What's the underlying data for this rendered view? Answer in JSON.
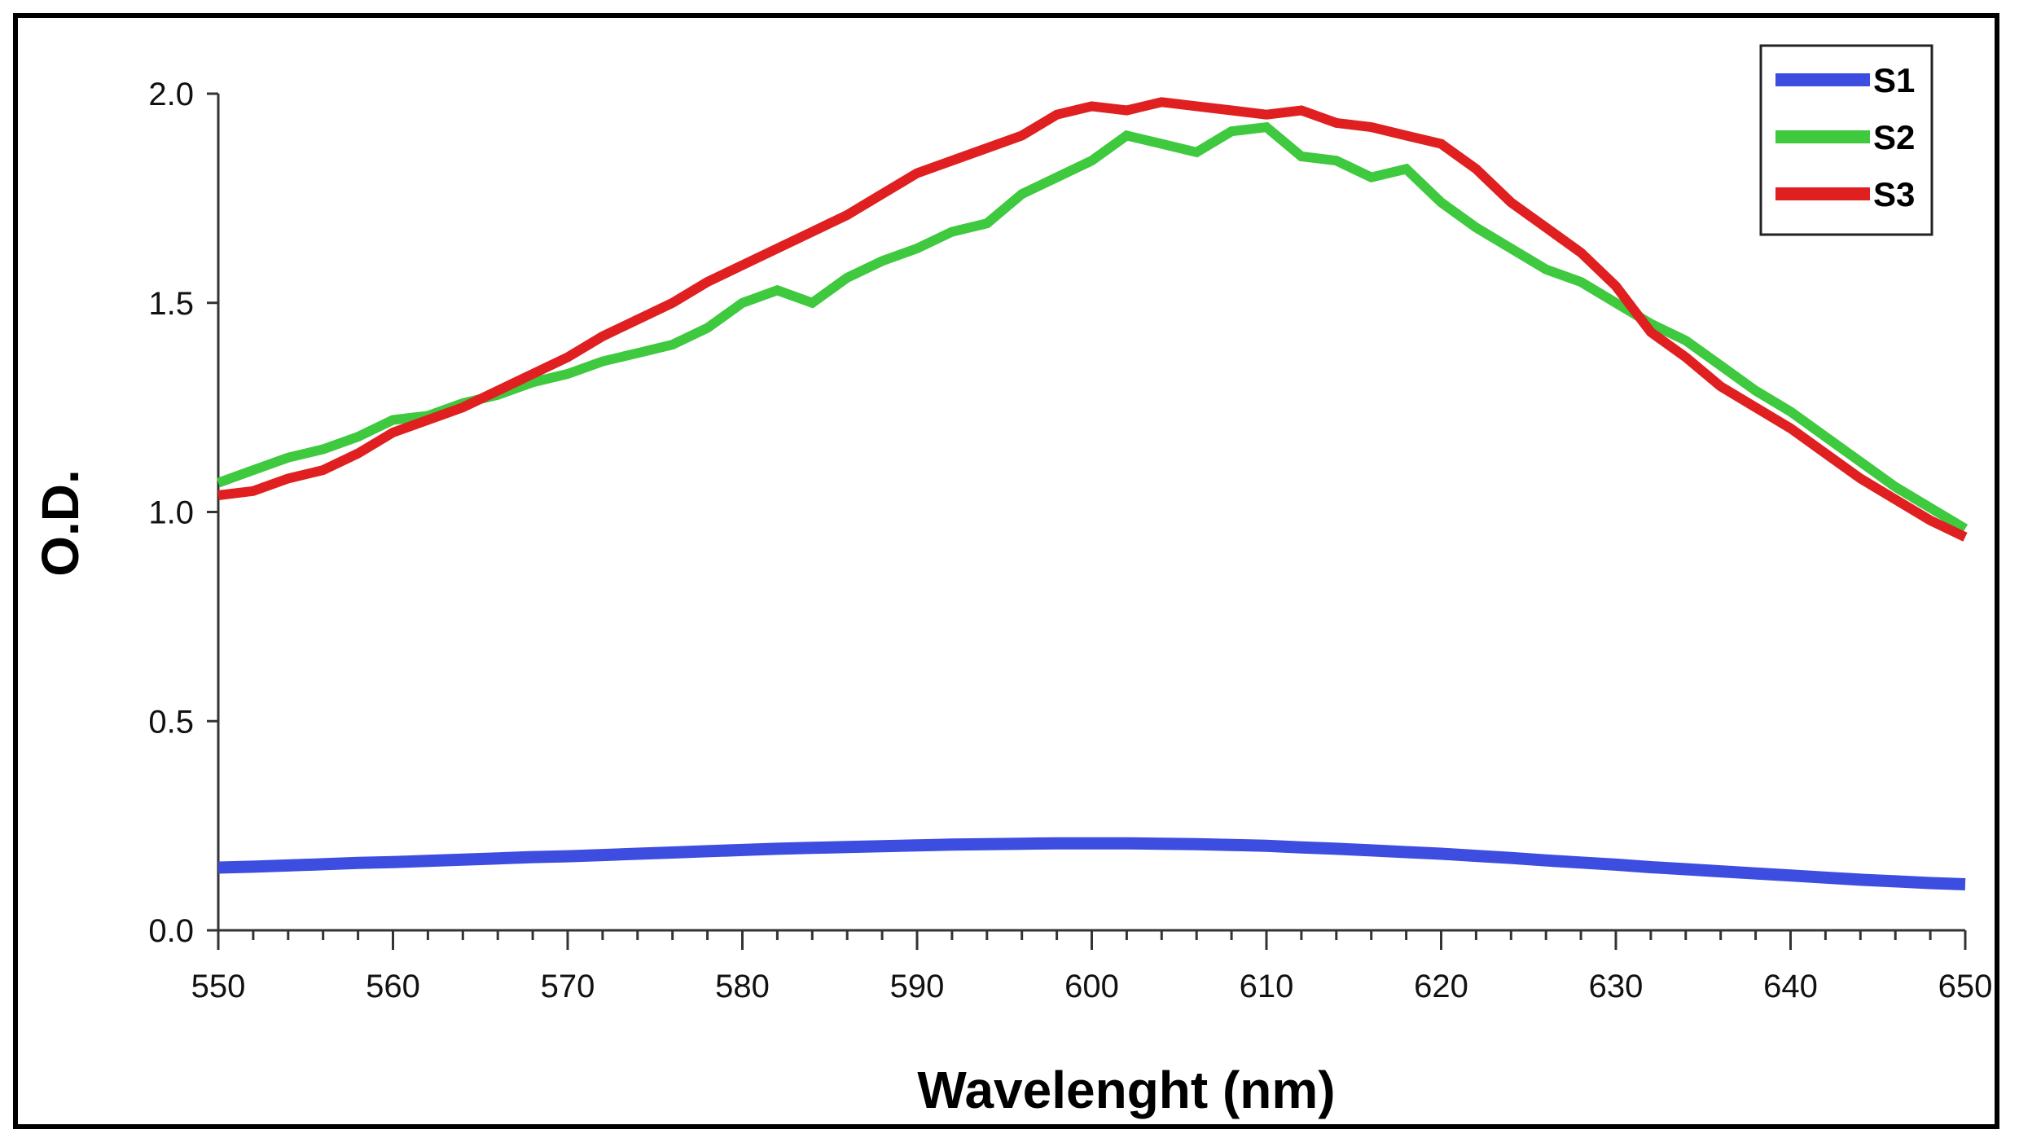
{
  "chart_data": {
    "type": "line",
    "xlabel": "Wavelenght (nm)",
    "ylabel": "O.D.",
    "xlim": [
      550,
      650
    ],
    "ylim": [
      0,
      2
    ],
    "x_ticks": [
      550,
      560,
      570,
      580,
      590,
      600,
      610,
      620,
      630,
      640,
      650
    ],
    "x_tick_labels": [
      "550",
      "560",
      "570",
      "580",
      "590",
      "600",
      "610",
      "620",
      "630",
      "640",
      "650"
    ],
    "y_ticks": [
      0,
      0.5,
      1,
      1.5,
      2
    ],
    "y_tick_labels": [
      "0.0",
      "0.5",
      "1.0",
      "1.5",
      "2.0"
    ],
    "grid": false,
    "legend_position": "top-right",
    "x": [
      550,
      552,
      554,
      556,
      558,
      560,
      562,
      564,
      566,
      568,
      570,
      572,
      574,
      576,
      578,
      580,
      582,
      584,
      586,
      588,
      590,
      592,
      594,
      596,
      598,
      600,
      602,
      604,
      606,
      608,
      610,
      612,
      614,
      616,
      618,
      620,
      622,
      624,
      626,
      628,
      630,
      632,
      634,
      636,
      638,
      640,
      642,
      644,
      646,
      648,
      650
    ],
    "series": [
      {
        "name": "S1",
        "color": "#3c4de0",
        "values": [
          0.15,
          0.152,
          0.155,
          0.158,
          0.161,
          0.163,
          0.166,
          0.169,
          0.172,
          0.175,
          0.177,
          0.18,
          0.183,
          0.186,
          0.189,
          0.192,
          0.195,
          0.197,
          0.199,
          0.201,
          0.203,
          0.205,
          0.206,
          0.207,
          0.208,
          0.208,
          0.208,
          0.207,
          0.206,
          0.204,
          0.202,
          0.198,
          0.195,
          0.191,
          0.187,
          0.183,
          0.178,
          0.173,
          0.167,
          0.162,
          0.157,
          0.151,
          0.146,
          0.141,
          0.136,
          0.131,
          0.126,
          0.121,
          0.117,
          0.113,
          0.11
        ]
      },
      {
        "name": "S2",
        "color": "#3ec93e",
        "values": [
          1.07,
          1.1,
          1.13,
          1.15,
          1.18,
          1.22,
          1.23,
          1.26,
          1.28,
          1.31,
          1.33,
          1.36,
          1.38,
          1.4,
          1.44,
          1.5,
          1.53,
          1.5,
          1.56,
          1.6,
          1.63,
          1.67,
          1.69,
          1.76,
          1.8,
          1.84,
          1.9,
          1.88,
          1.86,
          1.91,
          1.92,
          1.85,
          1.84,
          1.8,
          1.82,
          1.74,
          1.68,
          1.63,
          1.58,
          1.55,
          1.5,
          1.45,
          1.41,
          1.35,
          1.29,
          1.24,
          1.18,
          1.12,
          1.06,
          1.01,
          0.96
        ]
      },
      {
        "name": "S3",
        "color": "#e02020",
        "values": [
          1.04,
          1.05,
          1.08,
          1.1,
          1.14,
          1.19,
          1.22,
          1.25,
          1.29,
          1.33,
          1.37,
          1.42,
          1.46,
          1.5,
          1.55,
          1.59,
          1.63,
          1.67,
          1.71,
          1.76,
          1.81,
          1.84,
          1.87,
          1.9,
          1.95,
          1.97,
          1.96,
          1.98,
          1.97,
          1.96,
          1.95,
          1.96,
          1.93,
          1.92,
          1.9,
          1.88,
          1.82,
          1.74,
          1.68,
          1.62,
          1.54,
          1.43,
          1.37,
          1.3,
          1.25,
          1.2,
          1.14,
          1.08,
          1.03,
          0.98,
          0.94
        ]
      }
    ]
  }
}
